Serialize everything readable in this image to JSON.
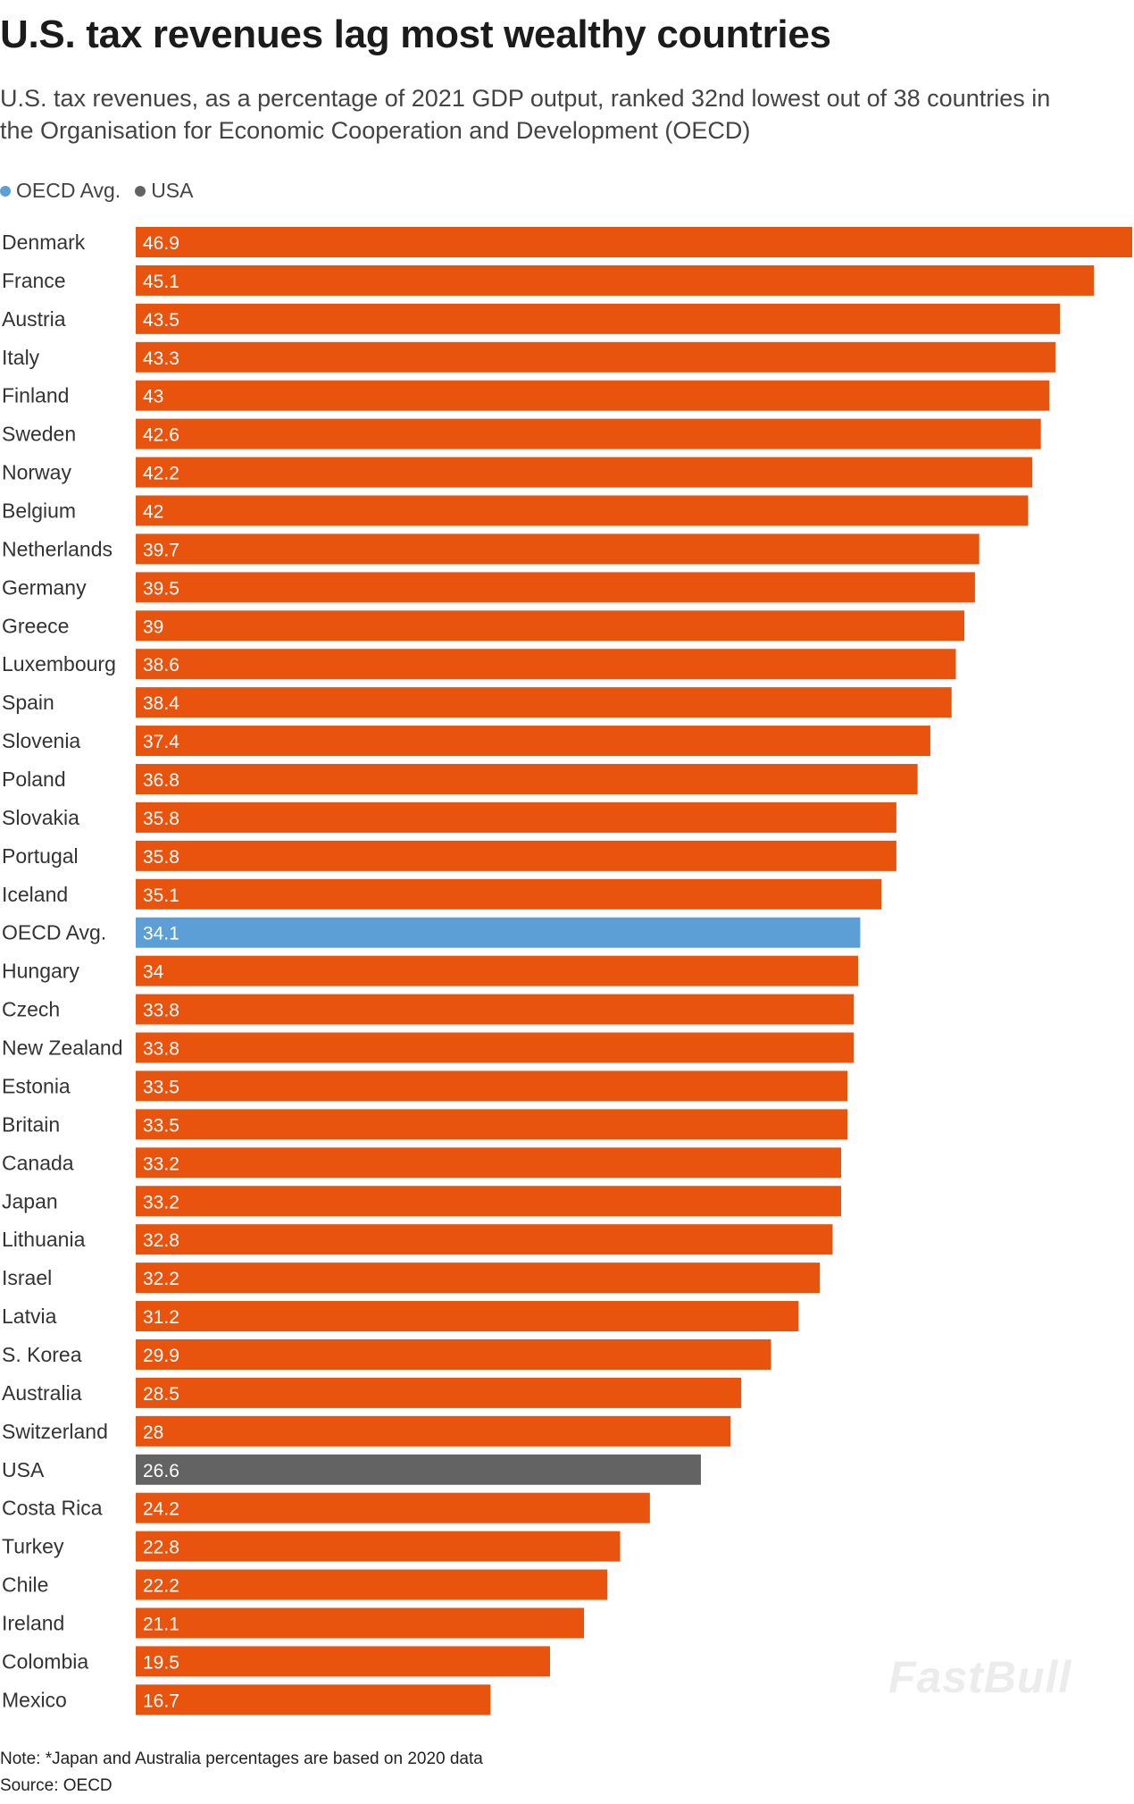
{
  "title": "U.S. tax revenues lag most wealthy countries",
  "subtitle": "U.S. tax revenues, as a percentage of 2021 GDP output, ranked 32nd lowest out of 38 countries in the Organisation for Economic Cooperation and Development (OECD)",
  "legend": [
    {
      "label": "OECD Avg.",
      "color": "#5b9fd6"
    },
    {
      "label": "USA",
      "color": "#636363"
    }
  ],
  "colors": {
    "default_bar": "#e8530e",
    "oecd_avg_bar": "#5b9fd6",
    "usa_bar": "#636363"
  },
  "chart_data": {
    "type": "bar",
    "orientation": "horizontal",
    "categories": [
      "Denmark",
      "France",
      "Austria",
      "Italy",
      "Finland",
      "Sweden",
      "Norway",
      "Belgium",
      "Netherlands",
      "Germany",
      "Greece",
      "Luxembourg",
      "Spain",
      "Slovenia",
      "Poland",
      "Slovakia",
      "Portugal",
      "Iceland",
      "OECD Avg.",
      "Hungary",
      "Czech",
      "New Zealand",
      "Estonia",
      "Britain",
      "Canada",
      "Japan",
      "Lithuania",
      "Israel",
      "Latvia",
      "S. Korea",
      "Australia",
      "Switzerland",
      "USA",
      "Costa Rica",
      "Turkey",
      "Chile",
      "Ireland",
      "Colombia",
      "Mexico"
    ],
    "values": [
      46.9,
      45.1,
      43.5,
      43.3,
      43,
      42.6,
      42.2,
      42,
      39.7,
      39.5,
      39,
      38.6,
      38.4,
      37.4,
      36.8,
      35.8,
      35.8,
      35.1,
      34.1,
      34,
      33.8,
      33.8,
      33.5,
      33.5,
      33.2,
      33.2,
      32.8,
      32.2,
      31.2,
      29.9,
      28.5,
      28,
      26.6,
      24.2,
      22.8,
      22.2,
      21.1,
      19.5,
      16.7
    ],
    "data_labels": [
      "46.9",
      "45.1",
      "43.5",
      "43.3",
      "43",
      "42.6",
      "42.2",
      "42",
      "39.7",
      "39.5",
      "39",
      "38.6",
      "38.4",
      "37.4",
      "36.8",
      "35.8",
      "35.8",
      "35.1",
      "34.1",
      "34",
      "33.8",
      "33.8",
      "33.5",
      "33.5",
      "33.2",
      "33.2",
      "32.8",
      "32.2",
      "31.2",
      "29.9",
      "28.5",
      "28",
      "26.6",
      "24.2",
      "22.8",
      "22.2",
      "21.1",
      "19.5",
      "16.7"
    ],
    "highlight": {
      "OECD Avg.": "#5b9fd6",
      "USA": "#636363"
    },
    "xlim": [
      0,
      46.9
    ],
    "grid": false,
    "legend_position": "top-left"
  },
  "watermark": "FastBull",
  "note": "Note: *Japan and Australia percentages are based on 2020 data",
  "source": "Source: OECD"
}
